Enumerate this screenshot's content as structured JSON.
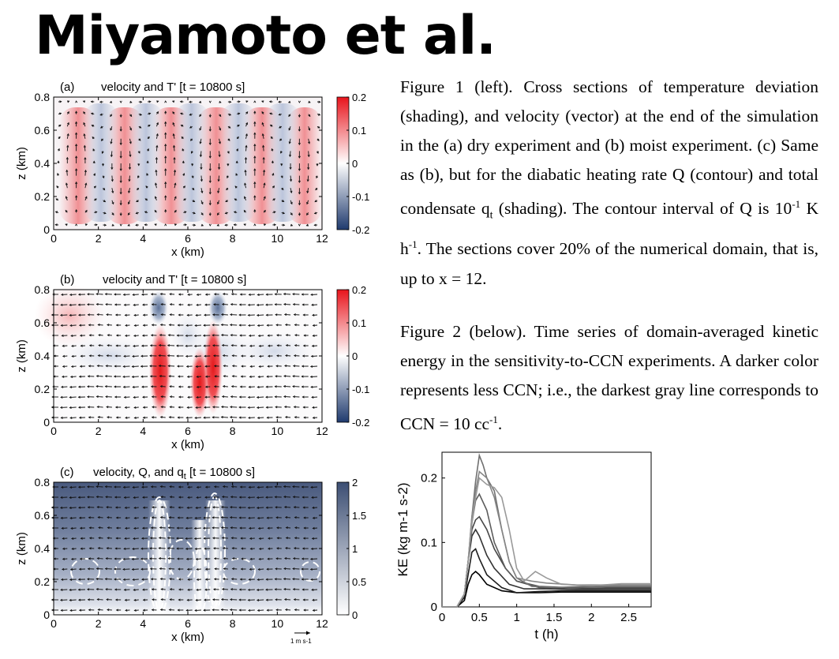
{
  "title": "Miyamoto et al.",
  "panels": [
    {
      "id": "a",
      "label": "(a)",
      "title": "velocity and T' [t = 10800 s]",
      "colorbar": [
        "0.2",
        "0.1",
        "0",
        "-0.1",
        "-0.2"
      ],
      "colormap": "red-white-blue",
      "xticks": [
        "0",
        "2",
        "4",
        "6",
        "8",
        "10",
        "12"
      ],
      "yticks": [
        "0.8",
        "0.6",
        "0.4",
        "0.2",
        "0"
      ],
      "xlabel": "x (km)",
      "ylabel": "z (km)"
    },
    {
      "id": "b",
      "label": "(b)",
      "title": "velocity and T' [t = 10800 s]",
      "colorbar": [
        "0.2",
        "0.1",
        "0",
        "-0.1",
        "-0.2"
      ],
      "colormap": "red-white-blue",
      "xticks": [
        "0",
        "2",
        "4",
        "6",
        "8",
        "10",
        "12"
      ],
      "yticks": [
        "0.8",
        "0.6",
        "0.4",
        "0.2",
        "0"
      ],
      "xlabel": "x (km)",
      "ylabel": "z (km)"
    },
    {
      "id": "c",
      "label": "(c)",
      "title_prefix": "velocity, Q, and q",
      "title_sub": "t",
      "title_suffix": " [t = 10800  s]",
      "colorbar": [
        "2",
        "1.5",
        "1",
        "0.5",
        "0"
      ],
      "colormap": "white-slate",
      "xticks": [
        "0",
        "2",
        "4",
        "6",
        "8",
        "10",
        "12"
      ],
      "yticks": [
        "0.8",
        "0.6",
        "0.4",
        "0.2",
        "0"
      ],
      "xlabel": "x (km)",
      "ylabel": "z (km)",
      "vector_key": "1 m s-1"
    }
  ],
  "caption1": {
    "text1": "Figure 1 (left). Cross sections of temperature deviation (shading), and velocity (vector) at the end of the simulation in the (a) dry experiment and (b) moist experiment. (c) Same as (b), but for the diabatic heating rate Q (contour) and total condensate q",
    "sub": "t",
    "text2": " (shading). The contour interval of Q is 10",
    "sup1": "-1",
    "text3": " K h",
    "sup2": "-1",
    "text4": ". The sections cover 20% of the numerical domain, that is, up to x = 12."
  },
  "caption2": {
    "text1": "Figure 2 (below). Time series of domain-averaged kinetic energy in the sensitivity-to-CCN experiments. A darker color represents less CCN; i.e., the darkest gray line corresponds to CCN = 10 cc",
    "sup": "-1",
    "text2": "."
  },
  "chart_data": {
    "type": "line",
    "xlabel": "t (h)",
    "ylabel": "KE (kg m-1 s-2)",
    "xlim": [
      0,
      2.8
    ],
    "ylim": [
      0,
      0.24
    ],
    "xticks": [
      "0",
      "0.5",
      "1",
      "1.5",
      "2",
      "2.5"
    ],
    "yticks": [
      "0",
      "0.1",
      "0.2"
    ],
    "grid": false,
    "series_colors": [
      "#000000",
      "#1e1e1e",
      "#333333",
      "#474747",
      "#5c5c5c",
      "#707070",
      "#858585",
      "#999999"
    ],
    "series": [
      {
        "x": [
          0,
          0.2,
          0.3,
          0.35,
          0.4,
          0.45,
          0.5,
          0.6,
          0.8,
          1.0,
          1.3,
          1.6,
          2.0,
          2.4,
          2.8
        ],
        "y": [
          0,
          0,
          0.01,
          0.035,
          0.05,
          0.055,
          0.05,
          0.035,
          0.025,
          0.022,
          0.022,
          0.023,
          0.023,
          0.023,
          0.023
        ]
      },
      {
        "x": [
          0,
          0.2,
          0.3,
          0.35,
          0.4,
          0.45,
          0.5,
          0.6,
          0.8,
          1.0,
          1.3,
          1.6,
          2.0,
          2.4,
          2.8
        ],
        "y": [
          0,
          0,
          0.015,
          0.05,
          0.085,
          0.09,
          0.075,
          0.05,
          0.03,
          0.022,
          0.024,
          0.025,
          0.025,
          0.025,
          0.025
        ]
      },
      {
        "x": [
          0,
          0.2,
          0.3,
          0.35,
          0.4,
          0.45,
          0.5,
          0.6,
          0.7,
          0.9,
          1.1,
          1.4,
          1.8,
          2.2,
          2.8
        ],
        "y": [
          0,
          0,
          0.02,
          0.07,
          0.11,
          0.12,
          0.11,
          0.08,
          0.06,
          0.035,
          0.028,
          0.028,
          0.027,
          0.027,
          0.027
        ]
      },
      {
        "x": [
          0,
          0.2,
          0.3,
          0.35,
          0.4,
          0.45,
          0.5,
          0.6,
          0.7,
          0.85,
          1.0,
          1.3,
          1.7,
          2.2,
          2.8
        ],
        "y": [
          0,
          0,
          0.02,
          0.07,
          0.12,
          0.135,
          0.14,
          0.12,
          0.09,
          0.06,
          0.04,
          0.03,
          0.028,
          0.029,
          0.029
        ]
      },
      {
        "x": [
          0,
          0.2,
          0.3,
          0.35,
          0.4,
          0.45,
          0.5,
          0.6,
          0.7,
          0.85,
          1.0,
          1.3,
          1.7,
          2.2,
          2.8
        ],
        "y": [
          0,
          0,
          0.02,
          0.07,
          0.13,
          0.165,
          0.175,
          0.15,
          0.1,
          0.06,
          0.04,
          0.032,
          0.03,
          0.031,
          0.031
        ]
      },
      {
        "x": [
          0,
          0.2,
          0.3,
          0.35,
          0.4,
          0.45,
          0.5,
          0.55,
          0.6,
          0.7,
          0.8,
          0.9,
          1.0,
          1.2,
          1.5,
          1.9,
          2.4,
          2.8
        ],
        "y": [
          0,
          0,
          0.02,
          0.07,
          0.14,
          0.195,
          0.235,
          0.22,
          0.2,
          0.18,
          0.12,
          0.07,
          0.045,
          0.032,
          0.03,
          0.032,
          0.032,
          0.032
        ]
      },
      {
        "x": [
          0,
          0.2,
          0.3,
          0.35,
          0.4,
          0.45,
          0.5,
          0.6,
          0.7,
          0.8,
          0.9,
          1.0,
          1.2,
          1.4,
          1.8,
          2.3,
          2.8
        ],
        "y": [
          0,
          0,
          0.02,
          0.07,
          0.14,
          0.18,
          0.21,
          0.2,
          0.17,
          0.12,
          0.07,
          0.045,
          0.04,
          0.037,
          0.034,
          0.034,
          0.034
        ]
      },
      {
        "x": [
          0,
          0.2,
          0.3,
          0.35,
          0.4,
          0.45,
          0.5,
          0.6,
          0.7,
          0.8,
          0.9,
          1.0,
          1.1,
          1.25,
          1.4,
          1.6,
          2.0,
          2.4,
          2.8
        ],
        "y": [
          0,
          0,
          0.02,
          0.07,
          0.13,
          0.17,
          0.2,
          0.19,
          0.185,
          0.17,
          0.12,
          0.06,
          0.04,
          0.055,
          0.045,
          0.035,
          0.033,
          0.036,
          0.036
        ]
      }
    ]
  }
}
